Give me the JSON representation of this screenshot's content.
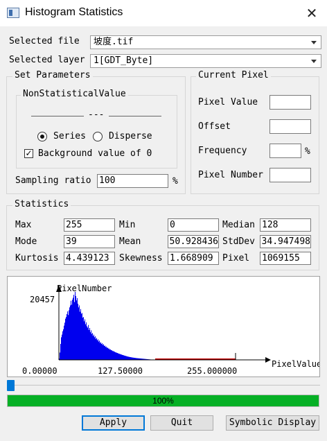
{
  "window": {
    "title": "Histogram Statistics",
    "close_glyph": "✕"
  },
  "file": {
    "label": "Selected file",
    "value": "坡度.tif"
  },
  "layer": {
    "label": "Selected layer",
    "value": "1[GDT_Byte]"
  },
  "set_parameters": {
    "title": "Set Parameters",
    "nonstat_title": "NonStatisticalValue",
    "range_from": "",
    "range_sep": "---",
    "range_to": "",
    "series_label": "Series",
    "disperse_label": "Disperse",
    "mode_selected": "Series",
    "background_label": "Background value of 0",
    "background_checked": true,
    "sampling_label": "Sampling ratio",
    "sampling_value": "100",
    "sampling_unit": "%"
  },
  "current_pixel": {
    "title": "Current Pixel",
    "pixel_value_label": "Pixel Value",
    "pixel_value": "",
    "offset_label": "Offset",
    "offset": "",
    "frequency_label": "Frequency",
    "frequency": "",
    "frequency_unit": "%",
    "pixel_number_label": "Pixel Number",
    "pixel_number": ""
  },
  "statistics": {
    "title": "Statistics",
    "rows": [
      [
        {
          "label": "Max",
          "value": "255"
        },
        {
          "label": "Min",
          "value": "0"
        },
        {
          "label": "Median",
          "value": "128"
        }
      ],
      [
        {
          "label": "Mode",
          "value": "39"
        },
        {
          "label": "Mean",
          "value": "50.928436"
        },
        {
          "label": "StdDev",
          "value": "34.947498"
        }
      ],
      [
        {
          "label": "Kurtosis",
          "value": "4.439123"
        },
        {
          "label": "Skewness",
          "value": "1.668909"
        },
        {
          "label": "Pixel",
          "value": "1069155"
        }
      ]
    ]
  },
  "chart_data": {
    "type": "bar",
    "ylabel": "PixelNumber",
    "xlabel": "PixelValue",
    "ymax_label": "20457",
    "ylim": [
      0,
      20457
    ],
    "xlim": [
      0,
      255
    ],
    "x_ticks": [
      "0.00000",
      "127.50000",
      "255.000000"
    ],
    "colors": {
      "bars": "#0000ee",
      "tail": "#c00000",
      "axis": "#000000"
    },
    "values": [
      400,
      2200,
      4800,
      6800,
      7600,
      8600,
      9200,
      10300,
      11200,
      12400,
      12900,
      13800,
      14600,
      13500,
      14900,
      15800,
      16400,
      17800,
      16600,
      18100,
      18700,
      19600,
      17400,
      20457,
      19200,
      17900,
      18600,
      16900,
      15800,
      16400,
      14500,
      15300,
      13900,
      14100,
      12700,
      12900,
      11600,
      12200,
      10700,
      11300,
      10100,
      9700,
      10500,
      9000,
      9600,
      8300,
      8900,
      7800,
      8100,
      7200,
      7600,
      6800,
      7100,
      6300,
      6600,
      5900,
      6200,
      5500,
      5800,
      5100,
      5300,
      4800,
      5000,
      4500,
      4700,
      4200,
      4300,
      3900,
      4000,
      3600,
      3700,
      3400,
      3400,
      3100,
      3150,
      2900,
      2900,
      2650,
      2700,
      2450,
      2500,
      2250,
      2300,
      2100,
      2100,
      1950,
      1900,
      1800,
      1750,
      1650,
      1600,
      1500,
      1450,
      1380,
      1300,
      1250,
      1180,
      1120,
      1050,
      1000,
      950,
      900,
      860,
      820,
      780,
      740,
      700,
      670,
      640,
      610,
      580,
      550,
      520,
      500,
      480,
      460,
      440,
      420,
      400,
      380,
      360,
      340,
      320,
      300,
      280,
      260,
      240,
      220,
      200,
      180,
      160,
      140,
      120,
      100,
      80,
      60,
      40,
      20,
      10
    ],
    "tail_from": 139,
    "tail_to": 255,
    "tail_value": 150
  },
  "scroll_position": 0,
  "progress": {
    "value": 1.0,
    "label": "100%"
  },
  "buttons": {
    "apply": "Apply",
    "quit": "Quit",
    "symbolic": "Symbolic Display"
  }
}
